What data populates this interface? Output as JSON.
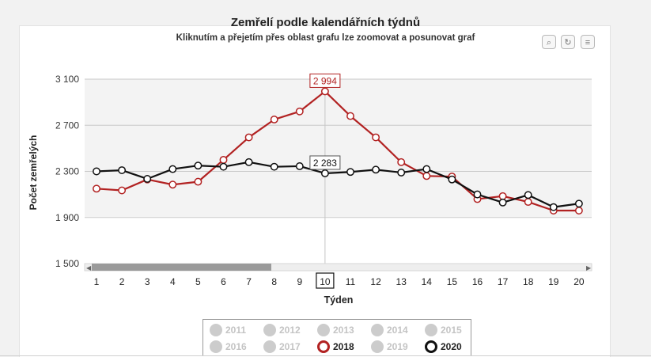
{
  "chart_data": {
    "type": "line",
    "title": "Zemřelí podle kalendářních týdnů",
    "subtitle": "Kliknutím a přejetím přes oblast grafu lze zoomovat a posunovat graf",
    "xlabel": "Týden",
    "ylabel": "Počet zemřelých",
    "categories": [
      1,
      2,
      3,
      4,
      5,
      6,
      7,
      8,
      9,
      10,
      11,
      12,
      13,
      14,
      15,
      16,
      17,
      18,
      19,
      20
    ],
    "ylim": [
      1500,
      3100
    ],
    "y_ticks": [
      "3 100",
      "2 700",
      "2 300",
      "1 900",
      "1 500"
    ],
    "grid": true,
    "highlight_x": 10,
    "series": [
      {
        "name": "2018",
        "color": "#b22222",
        "values": [
          2150,
          2135,
          2230,
          2185,
          2210,
          2400,
          2595,
          2750,
          2820,
          2994,
          2780,
          2595,
          2380,
          2260,
          2255,
          2060,
          2085,
          2035,
          1960,
          1960
        ]
      },
      {
        "name": "2020",
        "color": "#111111",
        "values": [
          2300,
          2310,
          2235,
          2320,
          2350,
          2340,
          2380,
          2340,
          2345,
          2283,
          2295,
          2315,
          2290,
          2320,
          2230,
          2100,
          2030,
          2095,
          1990,
          2020
        ]
      }
    ],
    "tooltips": [
      {
        "series": "2018",
        "text": "2 994"
      },
      {
        "series": "2020",
        "text": "2 283"
      }
    ],
    "legend": [
      {
        "label": "2011",
        "active": false
      },
      {
        "label": "2012",
        "active": false
      },
      {
        "label": "2013",
        "active": false
      },
      {
        "label": "2014",
        "active": false
      },
      {
        "label": "2015",
        "active": false
      },
      {
        "label": "2016",
        "active": false
      },
      {
        "label": "2017",
        "active": false
      },
      {
        "label": "2018",
        "active": true,
        "color": "#b22222"
      },
      {
        "label": "2019",
        "active": false
      },
      {
        "label": "2020",
        "active": true,
        "color": "#111111"
      }
    ],
    "legend_position": "bottom"
  }
}
